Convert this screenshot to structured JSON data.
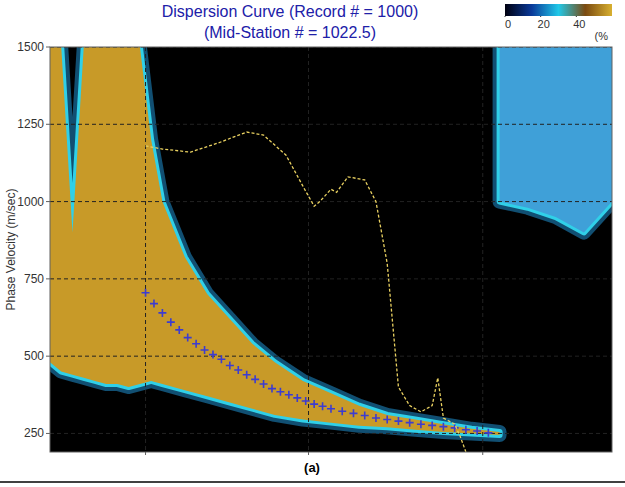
{
  "chart_data": {
    "type": "dispersion",
    "title": "Dispersion Curve (Record # = 1000)",
    "subtitle": "(Mid-Station # = 1022.5)",
    "ylabel": "Phase Velocity (m/sec)",
    "caption": "(a)",
    "xlim": [
      0,
      100
    ],
    "ylim": [
      190,
      1500
    ],
    "xticks": [
      17,
      46,
      77
    ],
    "yticks": [
      250,
      500,
      750,
      1000,
      1250,
      1500
    ],
    "tick_labels": "y",
    "grid": true,
    "colorbar": {
      "range": [
        0,
        60
      ],
      "ticks": [
        0,
        20,
        40
      ],
      "label": "(%",
      "colors": [
        "#000010",
        "#0a3a9a",
        "#20c8e8",
        "#7a4a10",
        "#d8b030"
      ]
    },
    "bands": [
      {
        "color": "#c89a28",
        "x": [
          0,
          2,
          4,
          6,
          8,
          10,
          12,
          14,
          16,
          18,
          20,
          24,
          28,
          32,
          36,
          40,
          45,
          50,
          55,
          60,
          65,
          70,
          75,
          80
        ],
        "lower": [
          480,
          450,
          440,
          430,
          420,
          410,
          410,
          400,
          410,
          420,
          410,
          390,
          370,
          350,
          330,
          310,
          295,
          285,
          275,
          270,
          262,
          255,
          250,
          245
        ],
        "upper": [
          1500,
          1500,
          900,
          1500,
          1500,
          1500,
          1500,
          1500,
          1500,
          1200,
          1000,
          820,
          700,
          620,
          540,
          480,
          420,
          380,
          340,
          310,
          295,
          280,
          265,
          255
        ]
      },
      {
        "color": "#3fa0d8",
        "x": [
          80,
          85,
          90,
          95,
          100
        ],
        "lower": [
          1000,
          980,
          950,
          900,
          1000
        ],
        "upper": [
          1500,
          1500,
          1500,
          1500,
          1500
        ]
      }
    ],
    "series": [
      {
        "type": "scatter",
        "marker": "cross",
        "color": "#3c3cd0",
        "x": [
          17,
          18.5,
          20,
          21.5,
          23,
          24.5,
          26,
          27.5,
          29,
          30.5,
          32,
          33.5,
          35,
          36.5,
          38,
          39.5,
          41,
          42.5,
          44,
          45.5,
          47,
          48.5,
          50,
          52,
          54,
          56,
          58,
          60,
          62,
          64,
          66,
          68,
          70,
          72,
          74,
          76,
          78
        ],
        "values": [
          705,
          670,
          640,
          610,
          585,
          560,
          540,
          520,
          505,
          490,
          470,
          455,
          440,
          425,
          410,
          395,
          385,
          375,
          365,
          355,
          345,
          338,
          330,
          322,
          315,
          308,
          300,
          295,
          290,
          285,
          280,
          276,
          272,
          268,
          262,
          258,
          252
        ]
      },
      {
        "type": "line",
        "line_style": "dashed",
        "color": "#e8d060",
        "x": [
          17,
          20,
          25,
          30,
          35,
          38,
          42,
          45,
          47,
          48,
          50,
          51,
          53,
          56,
          58,
          60,
          61,
          62,
          64,
          66,
          68,
          69,
          70,
          72,
          73,
          74
        ],
        "values": [
          1180,
          1170,
          1160,
          1190,
          1225,
          1215,
          1150,
          1050,
          985,
          1000,
          1040,
          1030,
          1080,
          1070,
          1000,
          800,
          600,
          400,
          340,
          320,
          340,
          430,
          300,
          280,
          240,
          190
        ]
      }
    ]
  }
}
